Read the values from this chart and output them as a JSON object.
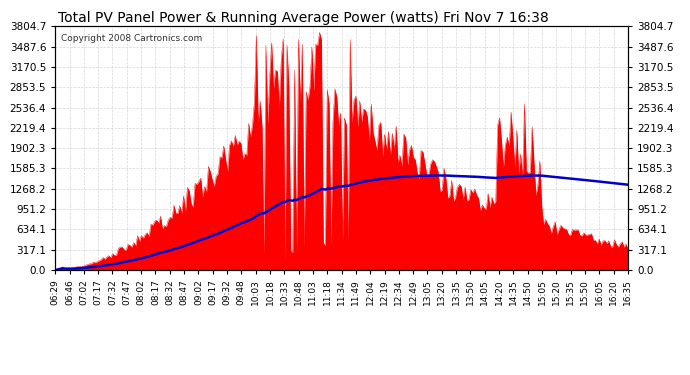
{
  "title": "Total PV Panel Power & Running Average Power (watts) Fri Nov 7 16:38",
  "copyright": "Copyright 2008 Cartronics.com",
  "background_color": "#ffffff",
  "plot_bg_color": "#ffffff",
  "grid_color": "#cccccc",
  "bar_color": "#ff0000",
  "line_color": "#0000cc",
  "yticks": [
    0.0,
    317.1,
    634.1,
    951.2,
    1268.2,
    1585.3,
    1902.3,
    2219.4,
    2536.4,
    2853.5,
    3170.5,
    3487.6,
    3804.7
  ],
  "ymax": 3804.7,
  "x_labels": [
    "06:29",
    "06:46",
    "07:02",
    "07:17",
    "07:32",
    "07:47",
    "08:02",
    "08:17",
    "08:32",
    "08:47",
    "09:02",
    "09:17",
    "09:32",
    "09:48",
    "10:03",
    "10:18",
    "10:33",
    "10:48",
    "11:03",
    "11:18",
    "11:34",
    "11:49",
    "12:04",
    "12:19",
    "12:34",
    "12:49",
    "13:05",
    "13:20",
    "13:35",
    "13:50",
    "14:05",
    "14:20",
    "14:35",
    "14:50",
    "15:05",
    "15:20",
    "15:35",
    "15:50",
    "16:05",
    "16:20",
    "16:35"
  ]
}
